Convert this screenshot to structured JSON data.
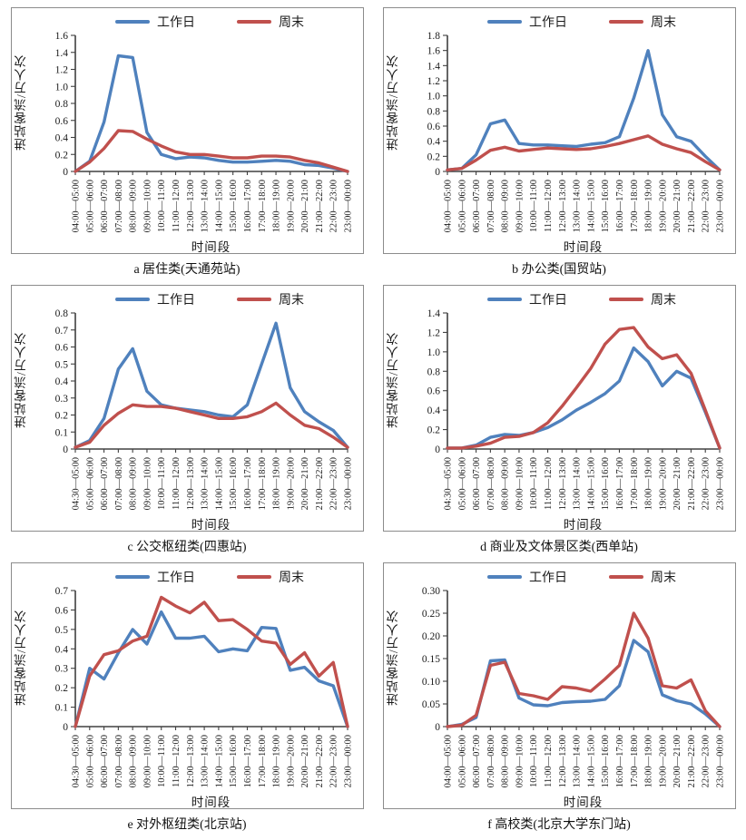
{
  "legend": {
    "weekday": "工作日",
    "weekend": "周末"
  },
  "axes": {
    "ylabel": "进站客流/万人次",
    "xlabel": "时间段"
  },
  "colors": {
    "weekday": "#4f81bd",
    "weekend": "#c0504d",
    "axis": "#404040",
    "text": "#1a1a1a",
    "panel_border": "#8c8c8c"
  },
  "chart_data": [
    {
      "id": "a",
      "type": "line",
      "caption": "a 居住类(天通苑站)",
      "ylim": [
        0,
        1.6
      ],
      "ystep": 0.2,
      "ydecimals": 1,
      "grid": false,
      "legend_position": "top",
      "categories": [
        "04:00—05:00",
        "05:00—06:00",
        "06:00—07:00",
        "07:00—08:00",
        "08:00—09:00",
        "09:00—10:00",
        "10:00—11:00",
        "11:00—12:00",
        "12:00—13:00",
        "13:00—14:00",
        "14:00—15:00",
        "15:00—16:00",
        "16:00—17:00",
        "17:00—18:00",
        "18:00—19:00",
        "19:00—20:00",
        "20:00—21:00",
        "21:00—22:00",
        "22:00—23:00",
        "23:00—00:00"
      ],
      "series": [
        {
          "name": "工作日",
          "key": "weekday",
          "values": [
            0,
            0.12,
            0.58,
            1.36,
            1.34,
            0.46,
            0.2,
            0.15,
            0.17,
            0.16,
            0.13,
            0.11,
            0.11,
            0.12,
            0.13,
            0.12,
            0.08,
            0.07,
            0.04,
            0
          ]
        },
        {
          "name": "周末",
          "key": "weekend",
          "values": [
            0,
            0.11,
            0.27,
            0.48,
            0.47,
            0.38,
            0.3,
            0.23,
            0.2,
            0.2,
            0.18,
            0.16,
            0.16,
            0.18,
            0.18,
            0.17,
            0.13,
            0.1,
            0.05,
            0
          ]
        }
      ]
    },
    {
      "id": "b",
      "type": "line",
      "caption": "b 办公类(国贸站)",
      "ylim": [
        0,
        1.8
      ],
      "ystep": 0.2,
      "ydecimals": 1,
      "grid": false,
      "legend_position": "top",
      "categories": [
        "04:00—05:00",
        "05:00—06:00",
        "06:00—07:00",
        "07:00—08:00",
        "08:00—09:00",
        "09:00—10:00",
        "10:00—11:00",
        "11:00—12:00",
        "12:00—13:00",
        "13:00—14:00",
        "14:00—15:00",
        "15:00—16:00",
        "16:00—17:00",
        "17:00—18:00",
        "18:00—19:00",
        "19:00—20:00",
        "20:00—21:00",
        "21:00—22:00",
        "22:00—23:00",
        "23:00—00:00"
      ],
      "series": [
        {
          "name": "工作日",
          "key": "weekday",
          "values": [
            0.02,
            0.04,
            0.22,
            0.63,
            0.68,
            0.37,
            0.35,
            0.35,
            0.34,
            0.33,
            0.36,
            0.38,
            0.46,
            0.97,
            1.6,
            0.75,
            0.46,
            0.4,
            0.2,
            0.02
          ]
        },
        {
          "name": "周末",
          "key": "weekend",
          "values": [
            0.02,
            0.04,
            0.15,
            0.28,
            0.32,
            0.27,
            0.29,
            0.31,
            0.3,
            0.29,
            0.3,
            0.33,
            0.37,
            0.42,
            0.47,
            0.36,
            0.3,
            0.25,
            0.13,
            0.02
          ]
        }
      ]
    },
    {
      "id": "c",
      "type": "line",
      "caption": "c 公交枢纽类(四惠站)",
      "ylim": [
        0,
        0.8
      ],
      "ystep": 0.1,
      "ydecimals": 1,
      "grid": false,
      "legend_position": "top",
      "categories": [
        "04:30—05:00",
        "05:00—06:00",
        "06:00—07:00",
        "07:00—08:00",
        "08:00—09:00",
        "09:00—10:00",
        "10:00—11:00",
        "11:00—12:00",
        "12:00—13:00",
        "13:00—14:00",
        "14:00—15:00",
        "15:00—16:00",
        "16:00—17:00",
        "17:00—18:00",
        "18:00—19:00",
        "19:00—20:00",
        "20:00—21:00",
        "21:00—22:00",
        "22:00—23:00",
        "23:00—00:00"
      ],
      "series": [
        {
          "name": "工作日",
          "key": "weekday",
          "values": [
            0.01,
            0.05,
            0.18,
            0.47,
            0.59,
            0.34,
            0.26,
            0.24,
            0.23,
            0.22,
            0.2,
            0.19,
            0.26,
            0.5,
            0.74,
            0.36,
            0.22,
            0.16,
            0.11,
            0.01
          ]
        },
        {
          "name": "周末",
          "key": "weekend",
          "values": [
            0.01,
            0.04,
            0.14,
            0.21,
            0.26,
            0.25,
            0.25,
            0.24,
            0.22,
            0.2,
            0.18,
            0.18,
            0.19,
            0.22,
            0.27,
            0.2,
            0.14,
            0.12,
            0.07,
            0.01
          ]
        }
      ]
    },
    {
      "id": "d",
      "type": "line",
      "caption": "d 商业及文体景区类(西单站)",
      "ylim": [
        0,
        1.4
      ],
      "ystep": 0.2,
      "ydecimals": 1,
      "grid": false,
      "legend_position": "top",
      "categories": [
        "04:30—05:00",
        "05:00—06:00",
        "06:00—07:00",
        "07:00—08:00",
        "08:00—09:00",
        "09:00—10:00",
        "10:00—11:00",
        "11:00—12:00",
        "12:00—13:00",
        "13:00—14:00",
        "14:00—15:00",
        "15:00—16:00",
        "16:00—17:00",
        "17:00—18:00",
        "18:00—19:00",
        "19:00—20:00",
        "20:00—21:00",
        "21:00—22:00",
        "22:00—23:00",
        "23:00—00:00"
      ],
      "series": [
        {
          "name": "工作日",
          "key": "weekday",
          "values": [
            0.01,
            0.01,
            0.04,
            0.12,
            0.15,
            0.14,
            0.17,
            0.22,
            0.3,
            0.4,
            0.48,
            0.57,
            0.7,
            1.04,
            0.9,
            0.65,
            0.8,
            0.73,
            0.38,
            0.01
          ]
        },
        {
          "name": "周末",
          "key": "weekend",
          "values": [
            0.01,
            0.01,
            0.03,
            0.06,
            0.12,
            0.13,
            0.17,
            0.27,
            0.44,
            0.63,
            0.83,
            1.08,
            1.23,
            1.25,
            1.05,
            0.93,
            0.97,
            0.78,
            0.4,
            0.01
          ]
        }
      ]
    },
    {
      "id": "e",
      "type": "line",
      "caption": "e 对外枢纽类(北京站)",
      "ylim": [
        0,
        0.7
      ],
      "ystep": 0.1,
      "ydecimals": 1,
      "grid": false,
      "legend_position": "top",
      "categories": [
        "04:30—05:00",
        "05:00—06:00",
        "06:00—07:00",
        "07:00—08:00",
        "08:00—09:00",
        "09:00—10:00",
        "10:00—11:00",
        "11:00—12:00",
        "12:00—13:00",
        "13:00—14:00",
        "14:00—15:00",
        "15:00—16:00",
        "16:00—17:00",
        "17:00—18:00",
        "18:00—19:00",
        "19:00—20:00",
        "20:00—21:00",
        "21:00—22:00",
        "22:00—23:00",
        "23:00—00:00"
      ],
      "series": [
        {
          "name": "工作日",
          "key": "weekday",
          "values": [
            0,
            0.3,
            0.245,
            0.38,
            0.5,
            0.425,
            0.59,
            0.455,
            0.455,
            0.465,
            0.385,
            0.4,
            0.39,
            0.51,
            0.505,
            0.29,
            0.305,
            0.235,
            0.21,
            0
          ]
        },
        {
          "name": "周末",
          "key": "weekend",
          "values": [
            0,
            0.26,
            0.37,
            0.39,
            0.44,
            0.465,
            0.665,
            0.62,
            0.585,
            0.64,
            0.545,
            0.55,
            0.5,
            0.44,
            0.43,
            0.32,
            0.38,
            0.26,
            0.33,
            0
          ]
        }
      ]
    },
    {
      "id": "f",
      "type": "line",
      "caption": "f 高校类(北京大学东门站)",
      "ylim": [
        0,
        0.3
      ],
      "ystep": 0.05,
      "ydecimals": 2,
      "grid": false,
      "legend_position": "top",
      "categories": [
        "04:00—05:00",
        "05:00—06:00",
        "06:00—07:00",
        "07:00—08:00",
        "08:00—09:00",
        "09:00—10:00",
        "10:00—11:00",
        "11:00—12:00",
        "12:00—13:00",
        "13:00—14:00",
        "14:00—15:00",
        "15:00—16:00",
        "16:00—17:00",
        "17:00—18:00",
        "18:00—19:00",
        "19:00—20:00",
        "20:00—21:00",
        "21:00—22:00",
        "22:00—23:00",
        "23:00—00:00"
      ],
      "series": [
        {
          "name": "工作日",
          "key": "weekday",
          "values": [
            0,
            0.005,
            0.02,
            0.145,
            0.147,
            0.063,
            0.048,
            0.046,
            0.053,
            0.055,
            0.056,
            0.06,
            0.09,
            0.19,
            0.165,
            0.07,
            0.057,
            0.05,
            0.028,
            0
          ]
        },
        {
          "name": "周末",
          "key": "weekend",
          "values": [
            0,
            0.003,
            0.025,
            0.135,
            0.142,
            0.073,
            0.068,
            0.06,
            0.088,
            0.085,
            0.078,
            0.105,
            0.135,
            0.25,
            0.195,
            0.09,
            0.085,
            0.103,
            0.035,
            0
          ]
        }
      ]
    }
  ]
}
